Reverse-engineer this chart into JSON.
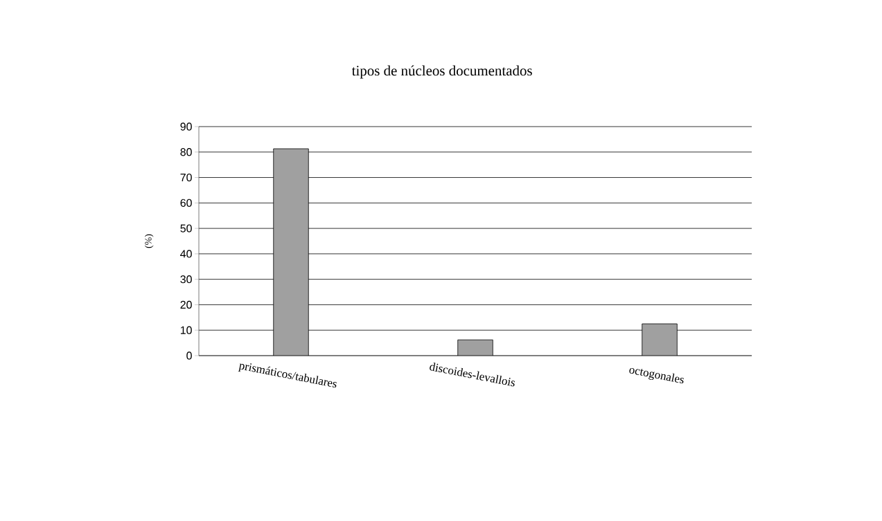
{
  "chart_data": {
    "type": "bar",
    "title": "tipos de núcleos documentados",
    "ylabel": "(%)",
    "categories": [
      "prismáticos/tabulares",
      "discoides-levallois",
      "octogonales"
    ],
    "values": [
      81.3,
      6.2,
      12.5
    ],
    "color": "#a0a0a0",
    "ylim": [
      0,
      90
    ],
    "yticks": [
      0,
      10,
      20,
      30,
      40,
      50,
      60,
      70,
      80,
      90
    ],
    "grid": "y"
  }
}
